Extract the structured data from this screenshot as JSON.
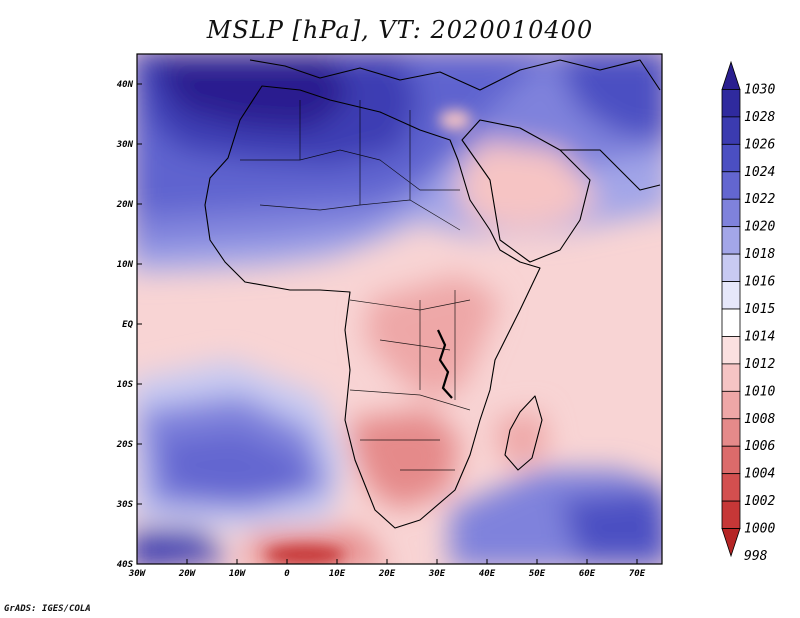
{
  "title": "MSLP [hPa], VT: 2020010400",
  "credit": "GrADS: IGES/COLA",
  "map": {
    "type": "filled_contour_map",
    "variable": "Mean sea level pressure",
    "units": "hPa",
    "valid_time": "2020010400",
    "lon_range": [
      -30,
      75
    ],
    "lat_range": [
      -40,
      45
    ],
    "x_ticks": [
      {
        "value": -30,
        "label": "30W"
      },
      {
        "value": -20,
        "label": "20W"
      },
      {
        "value": -10,
        "label": "10W"
      },
      {
        "value": 0,
        "label": "0"
      },
      {
        "value": 10,
        "label": "10E"
      },
      {
        "value": 20,
        "label": "20E"
      },
      {
        "value": 30,
        "label": "30E"
      },
      {
        "value": 40,
        "label": "40E"
      },
      {
        "value": 50,
        "label": "50E"
      },
      {
        "value": 60,
        "label": "60E"
      },
      {
        "value": 70,
        "label": "70E"
      }
    ],
    "y_ticks": [
      {
        "value": 40,
        "label": "40N"
      },
      {
        "value": 30,
        "label": "30N"
      },
      {
        "value": 20,
        "label": "20N"
      },
      {
        "value": 10,
        "label": "10N"
      },
      {
        "value": 0,
        "label": "EQ"
      },
      {
        "value": -10,
        "label": "10S"
      },
      {
        "value": -20,
        "label": "20S"
      },
      {
        "value": -30,
        "label": "30S"
      },
      {
        "value": -40,
        "label": "40S"
      }
    ]
  },
  "colorbar": {
    "levels": [
      {
        "label": "1030",
        "color": "#2a1f8f"
      },
      {
        "label": "1028",
        "color": "#2f2a9e"
      },
      {
        "label": "1026",
        "color": "#3b3bb0"
      },
      {
        "label": "1024",
        "color": "#4b4fc2"
      },
      {
        "label": "1022",
        "color": "#6366d0"
      },
      {
        "label": "1020",
        "color": "#7f82dc"
      },
      {
        "label": "1018",
        "color": "#a3a6e8"
      },
      {
        "label": "1016",
        "color": "#c8caf2"
      },
      {
        "label": "1015",
        "color": "#e6e7fa"
      },
      {
        "label": "1014",
        "color": "#ffffff"
      },
      {
        "label": "1012",
        "color": "#fbe0e0"
      },
      {
        "label": "1010",
        "color": "#f6c4c4"
      },
      {
        "label": "1008",
        "color": "#eea7a7"
      },
      {
        "label": "1006",
        "color": "#e58a8a"
      },
      {
        "label": "1004",
        "color": "#dc6b6b"
      },
      {
        "label": "1002",
        "color": "#d34f4f"
      },
      {
        "label": "1000",
        "color": "#c63737"
      },
      {
        "label": "998",
        "color": "#b52525"
      }
    ]
  }
}
